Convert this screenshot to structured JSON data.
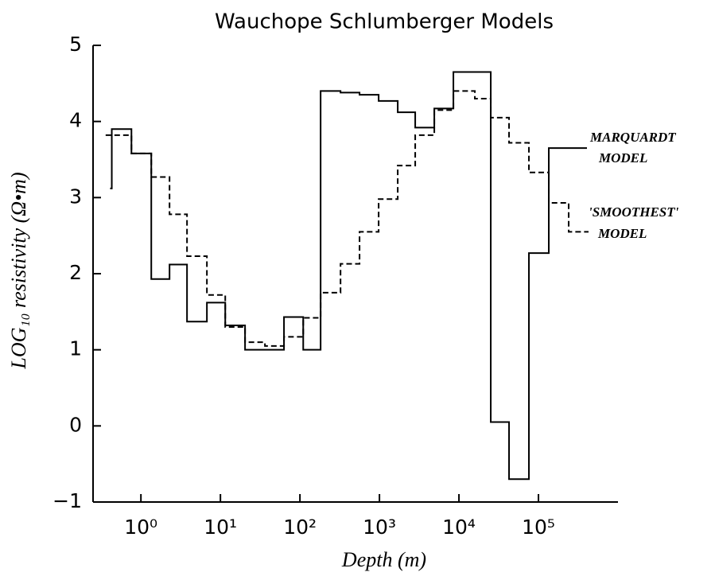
{
  "chart_data": {
    "type": "line",
    "step": true,
    "log_x": true,
    "title": "Wauchope Schlumberger Models",
    "x_label": "Depth (m)",
    "y_label": "LOG₁₀ resistivity (Ω•m)",
    "xlim": [
      0.25,
      1000000
    ],
    "ylim": [
      -1,
      5
    ],
    "xticks": [
      {
        "value": 1,
        "label": "10⁰"
      },
      {
        "value": 10,
        "label": "10¹"
      },
      {
        "value": 100,
        "label": "10²"
      },
      {
        "value": 1000,
        "label": "10³"
      },
      {
        "value": 10000,
        "label": "10⁴"
      },
      {
        "value": 100000,
        "label": "10⁵"
      }
    ],
    "yticks": [
      {
        "value": -1,
        "label": "−1"
      },
      0,
      1,
      2,
      3,
      4,
      5
    ],
    "series": [
      {
        "color": "#000000",
        "style": "solid",
        "x": [
          0.41,
          0.43,
          0.76,
          1.35,
          2.29,
          3.8,
          6.76,
          11.5,
          20.4,
          63,
          110,
          182,
          324,
          562,
          977,
          1698,
          2818,
          4898,
          8511,
          25119,
          42658,
          75858,
          134896,
          407380
        ],
        "values": [
          3.12,
          3.9,
          3.58,
          1.93,
          2.12,
          1.37,
          1.62,
          1.32,
          1.0,
          1.43,
          1.0,
          4.4,
          4.38,
          4.35,
          4.27,
          4.12,
          3.92,
          4.17,
          4.65,
          0.05,
          -0.7,
          2.27,
          3.65,
          3.65
        ]
      },
      {
        "color": "#000000",
        "style": "dashed",
        "x": [
          0.36,
          0.76,
          1.35,
          2.29,
          3.8,
          6.76,
          11.5,
          20.4,
          36.3,
          63,
          110,
          182,
          324,
          562,
          977,
          1698,
          2818,
          4898,
          8511,
          15849,
          25119,
          42658,
          75858,
          134896,
          239883,
          426580
        ],
        "values": [
          3.82,
          3.58,
          3.27,
          2.78,
          2.23,
          1.72,
          1.3,
          1.1,
          1.05,
          1.17,
          1.42,
          1.75,
          2.13,
          2.55,
          2.98,
          3.42,
          3.82,
          4.15,
          4.4,
          4.3,
          4.05,
          3.72,
          3.33,
          2.93,
          2.55,
          2.55
        ]
      }
    ],
    "annotations": [
      "MARQUARDT",
      "MODEL",
      "'SMOOTHEST'",
      "MODEL"
    ]
  }
}
